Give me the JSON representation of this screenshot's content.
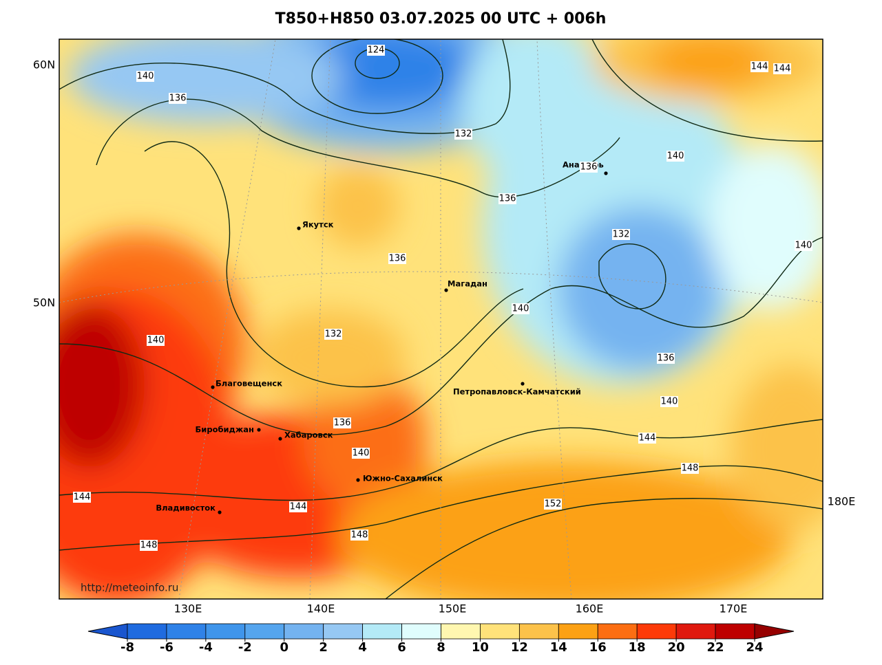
{
  "title": "T850+H850 03.07.2025 00 UTC + 006h",
  "lat_labels": [
    "60N",
    "50N"
  ],
  "lon_labels": [
    "130E",
    "140E",
    "150E",
    "160E",
    "170E",
    "180E"
  ],
  "cities": [
    "Якутск",
    "Магадан",
    "Анадырь",
    "Благовещенск",
    "Биробиджан",
    "Хабаровск",
    "Петропавловск-Камчатский",
    "Южно-Сахалинск",
    "Владивосток"
  ],
  "contour_labels": [
    124,
    140,
    136,
    132,
    140,
    136,
    136,
    132,
    140,
    136,
    140,
    132,
    140,
    136,
    140,
    136,
    144,
    140,
    148,
    144,
    152,
    144,
    148,
    148,
    144,
    144
  ],
  "credit": "http://meteoinfo.ru",
  "colorbar": {
    "ticks": [
      -8,
      -6,
      -4,
      -2,
      0,
      2,
      4,
      6,
      8,
      10,
      12,
      14,
      16,
      18,
      20,
      22,
      24
    ],
    "colors": [
      "#1a56cf",
      "#1f6be0",
      "#2f82e8",
      "#3f95eb",
      "#55a5ee",
      "#74b3f0",
      "#96c8f3",
      "#b4eaf7",
      "#e0fdfd",
      "#fff7b0",
      "#ffe27a",
      "#fcc24a",
      "#fca114",
      "#fc6e12",
      "#fd3a08",
      "#e0190e",
      "#be0000",
      "#960000"
    ]
  }
}
